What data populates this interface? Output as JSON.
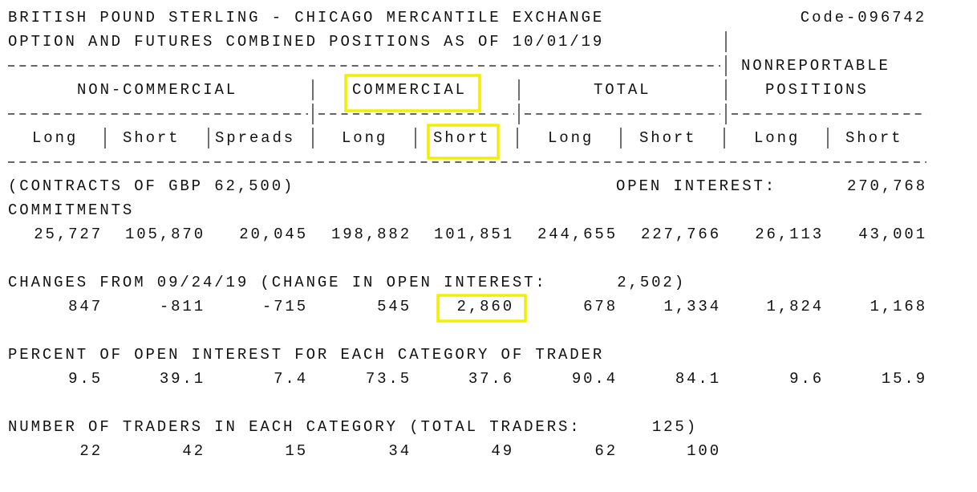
{
  "header": {
    "title": "BRITISH POUND STERLING - CHICAGO MERCANTILE EXCHANGE",
    "code": "Code-096742",
    "subtitle": "OPTION AND FUTURES COMBINED POSITIONS AS OF 10/01/19"
  },
  "columns": {
    "nonreportable": [
      "NONREPORTABLE",
      "POSITIONS"
    ],
    "groups": [
      "NON-COMMERCIAL",
      "COMMERCIAL",
      "TOTAL"
    ],
    "subheaders": [
      "Long",
      "Short",
      "Spreads",
      "Long",
      "Short",
      "Long",
      "Short",
      "Long",
      "Short"
    ]
  },
  "units": "(CONTRACTS OF GBP 62,500)",
  "open_interest": {
    "label": "OPEN INTEREST:",
    "value": "270,768"
  },
  "commitments": {
    "label": "COMMITMENTS",
    "values": [
      "25,727",
      "105,870",
      "20,045",
      "198,882",
      "101,851",
      "244,655",
      "227,766",
      "26,113",
      "43,001"
    ]
  },
  "changes": {
    "label": "CHANGES FROM 09/24/19 (CHANGE IN OPEN INTEREST:",
    "total": "2,502)",
    "values": [
      "847",
      "-811",
      "-715",
      "545",
      "2,860",
      "678",
      "1,334",
      "1,824",
      "1,168"
    ]
  },
  "percent": {
    "label": "PERCENT OF OPEN INTEREST FOR EACH CATEGORY OF TRADER",
    "values": [
      "9.5",
      "39.1",
      "7.4",
      "73.5",
      "37.6",
      "90.4",
      "84.1",
      "9.6",
      "15.9"
    ]
  },
  "traders": {
    "label": "NUMBER OF TRADERS IN EACH CATEGORY (TOTAL TRADERS:",
    "total": "125)",
    "values": [
      "22",
      "42",
      "15",
      "34",
      "49",
      "62",
      "100"
    ]
  }
}
